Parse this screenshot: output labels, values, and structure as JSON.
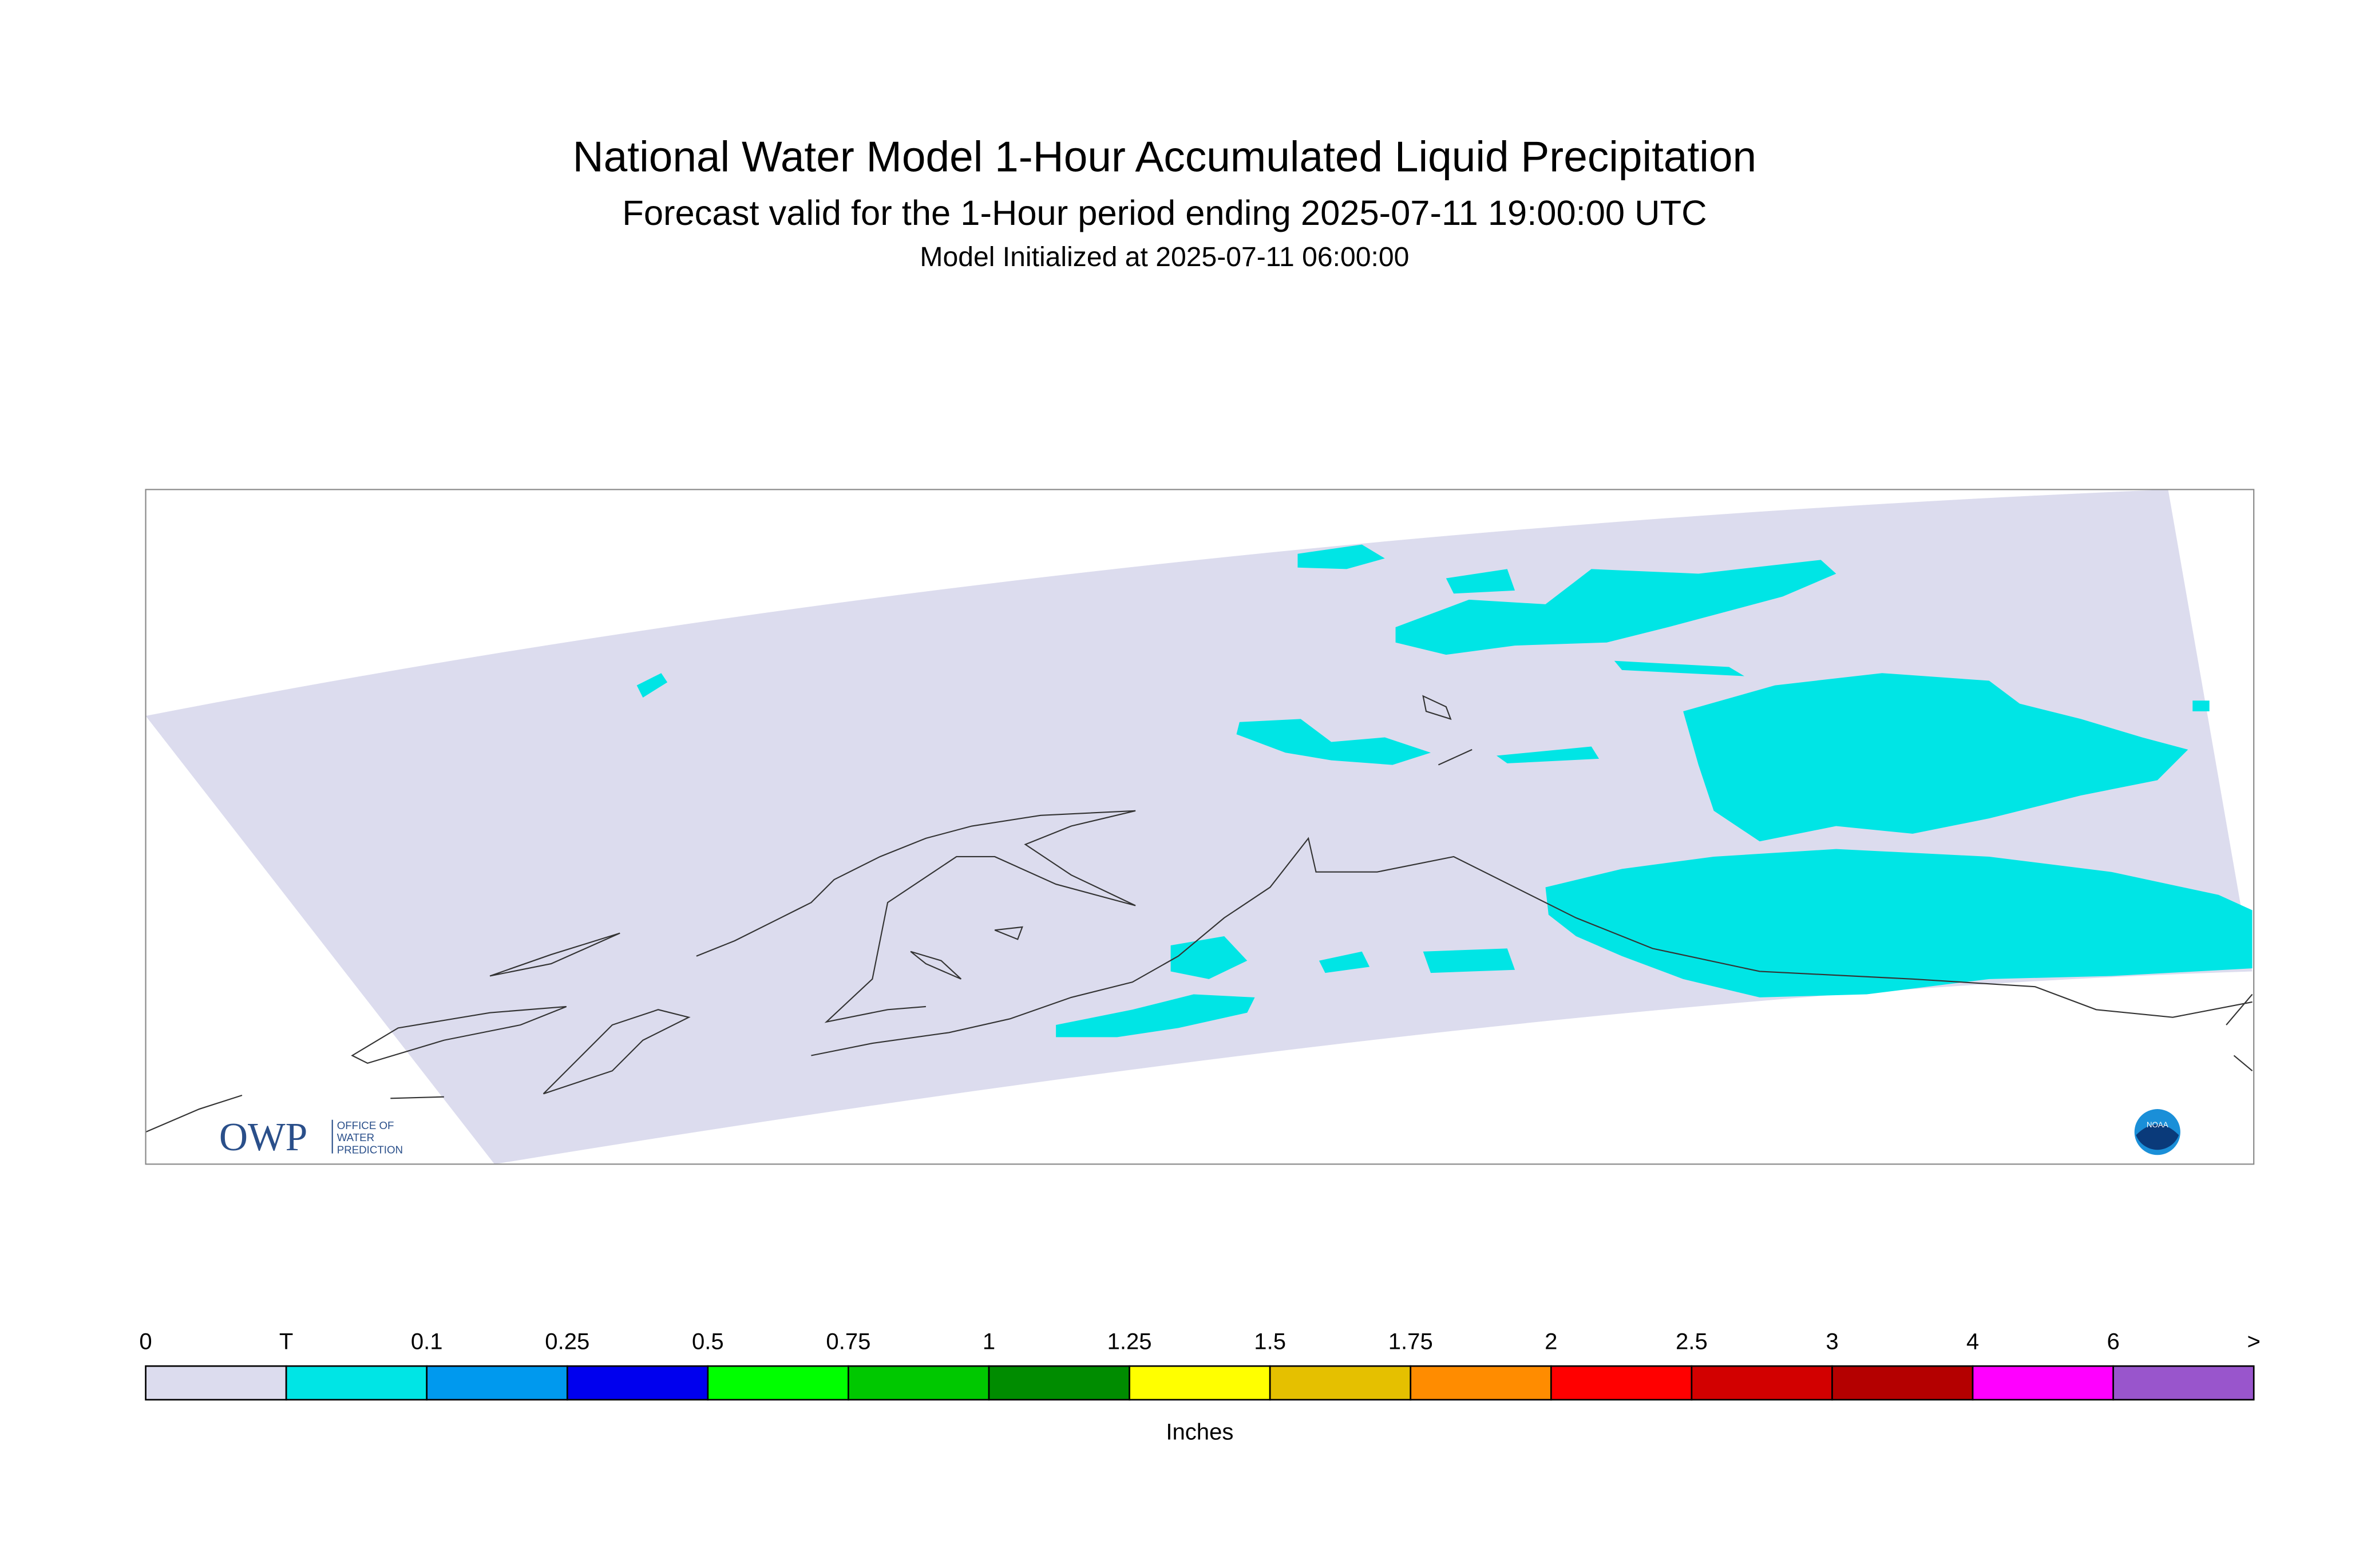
{
  "header": {
    "title": "National Water Model 1-Hour Accumulated Liquid Precipitation",
    "subtitle": "Forecast valid for the 1-Hour period ending 2025-07-11 19:00:00 UTC",
    "initialized": "Model Initialized at 2025-07-11 06:00:00"
  },
  "logos": {
    "owp": "OWP",
    "owp_full": [
      "OFFICE OF",
      "WATER",
      "PREDICTION"
    ],
    "noaa": "NOAA"
  },
  "legend": {
    "labels": [
      "0",
      "T",
      "0.1",
      "0.25",
      "0.5",
      "0.75",
      "1",
      "1.25",
      "1.5",
      "1.75",
      "2",
      "2.5",
      "3",
      "4",
      "6",
      ">"
    ],
    "colors": [
      "#dcdcee",
      "#00e5e5",
      "#0099ee",
      "#0000ee",
      "#00ff00",
      "#00c800",
      "#008c00",
      "#ffff00",
      "#e5c000",
      "#ff8c00",
      "#ff0000",
      "#d20000",
      "#b40000",
      "#ff00ff",
      "#9955cc"
    ],
    "units": "Inches"
  }
}
